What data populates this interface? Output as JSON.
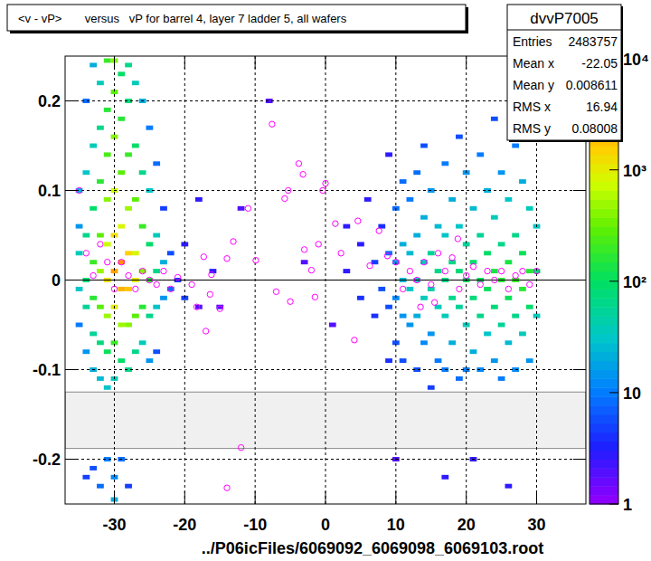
{
  "chart_data": {
    "type": "heatmap",
    "title": "<v - vP>       versus   vP for barrel 4, layer 7 ladder 5, all wafers",
    "x_label": "../P06icFiles/6069092_6069098_6069103.root",
    "xlim": [
      -37,
      37
    ],
    "ylim": [
      -0.25,
      0.25
    ],
    "xticks": [
      -30,
      -20,
      -10,
      0,
      10,
      20,
      30
    ],
    "yticks": [
      -0.2,
      -0.1,
      0,
      0.1,
      0.2
    ],
    "grid": true,
    "hline": 0,
    "shaded_band": [
      -0.188,
      -0.125
    ],
    "cell_size": [
      1,
      0.005
    ],
    "cells": [
      [
        -35,
        0.1,
        20
      ],
      [
        -35,
        0.03,
        40
      ],
      [
        -35,
        -0.01,
        30
      ],
      [
        -35,
        0.06,
        15
      ],
      [
        -35,
        -0.05,
        10
      ],
      [
        -34,
        0.2,
        8
      ],
      [
        -34,
        0.12,
        30
      ],
      [
        -34,
        0.05,
        60
      ],
      [
        -34,
        0.0,
        80
      ],
      [
        -34,
        -0.03,
        50
      ],
      [
        -34,
        -0.08,
        15
      ],
      [
        -34,
        -0.22,
        5
      ],
      [
        -33,
        0.24,
        20
      ],
      [
        -33,
        0.15,
        40
      ],
      [
        -33,
        0.08,
        100
      ],
      [
        -33,
        0.02,
        200
      ],
      [
        -33,
        -0.02,
        150
      ],
      [
        -33,
        -0.06,
        50
      ],
      [
        -33,
        -0.1,
        20
      ],
      [
        -33,
        -0.21,
        6
      ],
      [
        -32,
        0.22,
        40
      ],
      [
        -32,
        0.17,
        60
      ],
      [
        -32,
        0.11,
        150
      ],
      [
        -32,
        0.05,
        300
      ],
      [
        -32,
        0.01,
        500
      ],
      [
        -32,
        -0.03,
        300
      ],
      [
        -32,
        -0.07,
        80
      ],
      [
        -32,
        -0.11,
        25
      ],
      [
        -32,
        -0.23,
        8
      ],
      [
        -31,
        0.245,
        200
      ],
      [
        -31,
        0.19,
        150
      ],
      [
        -31,
        0.14,
        250
      ],
      [
        -31,
        0.09,
        400
      ],
      [
        -31,
        0.04,
        700
      ],
      [
        -31,
        0.0,
        1200
      ],
      [
        -31,
        -0.04,
        500
      ],
      [
        -31,
        -0.08,
        120
      ],
      [
        -31,
        -0.12,
        30
      ],
      [
        -31,
        -0.2,
        10
      ],
      [
        -30,
        0.245,
        400
      ],
      [
        -30,
        0.21,
        300
      ],
      [
        -30,
        0.16,
        400
      ],
      [
        -30,
        0.1,
        700
      ],
      [
        -30,
        0.05,
        1200
      ],
      [
        -30,
        0.01,
        2500
      ],
      [
        -30,
        -0.03,
        1000
      ],
      [
        -30,
        -0.07,
        200
      ],
      [
        -30,
        -0.11,
        40
      ],
      [
        -30,
        -0.22,
        12
      ],
      [
        -30,
        -0.245,
        20
      ],
      [
        -29,
        0.23,
        100
      ],
      [
        -29,
        0.18,
        150
      ],
      [
        -29,
        0.12,
        300
      ],
      [
        -29,
        0.06,
        900
      ],
      [
        -29,
        0.02,
        3000
      ],
      [
        -29,
        -0.01,
        2000
      ],
      [
        -29,
        -0.05,
        500
      ],
      [
        -29,
        -0.09,
        100
      ],
      [
        -29,
        -0.2,
        8
      ],
      [
        -28,
        0.24,
        60
      ],
      [
        -28,
        0.2,
        80
      ],
      [
        -28,
        0.14,
        200
      ],
      [
        -28,
        0.08,
        500
      ],
      [
        -28,
        0.03,
        1500
      ],
      [
        -28,
        -0.01,
        1800
      ],
      [
        -28,
        -0.05,
        400
      ],
      [
        -28,
        -0.1,
        60
      ],
      [
        -28,
        -0.23,
        5
      ],
      [
        -27,
        0.22,
        40
      ],
      [
        -27,
        0.15,
        100
      ],
      [
        -27,
        0.09,
        300
      ],
      [
        -27,
        0.03,
        800
      ],
      [
        -27,
        0.0,
        1000
      ],
      [
        -27,
        -0.04,
        300
      ],
      [
        -27,
        -0.08,
        60
      ],
      [
        -26,
        0.2,
        20
      ],
      [
        -26,
        0.12,
        60
      ],
      [
        -26,
        0.06,
        200
      ],
      [
        -26,
        0.01,
        400
      ],
      [
        -26,
        -0.03,
        150
      ],
      [
        -26,
        -0.07,
        40
      ],
      [
        -25,
        0.17,
        10
      ],
      [
        -25,
        0.1,
        30
      ],
      [
        -25,
        0.04,
        100
      ],
      [
        -25,
        0.0,
        150
      ],
      [
        -25,
        -0.04,
        60
      ],
      [
        -25,
        -0.09,
        15
      ],
      [
        -24,
        0.13,
        8
      ],
      [
        -24,
        0.05,
        40
      ],
      [
        -24,
        0.01,
        60
      ],
      [
        -24,
        -0.03,
        30
      ],
      [
        -24,
        -0.08,
        6
      ],
      [
        -23,
        0.08,
        5
      ],
      [
        -23,
        0.02,
        20
      ],
      [
        -23,
        -0.02,
        15
      ],
      [
        -22,
        0.03,
        6
      ],
      [
        -22,
        -0.01,
        8
      ],
      [
        -21,
        0.0,
        4
      ],
      [
        -20,
        0.04,
        3
      ],
      [
        -20,
        -0.02,
        5
      ],
      [
        -18,
        0.09,
        3
      ],
      [
        -18,
        -0.03,
        2
      ],
      [
        -16,
        0.01,
        3
      ],
      [
        -15,
        -0.03,
        2
      ],
      [
        -12,
        0.08,
        2
      ],
      [
        -8,
        0.2,
        2
      ],
      [
        -3,
        0.02,
        2
      ],
      [
        1,
        -0.05,
        2
      ],
      [
        3,
        0.06,
        3
      ],
      [
        3,
        0.01,
        3
      ],
      [
        5,
        -0.02,
        4
      ],
      [
        5,
        0.04,
        3
      ],
      [
        6,
        0.09,
        3
      ],
      [
        7,
        0.02,
        5
      ],
      [
        7,
        -0.04,
        4
      ],
      [
        8,
        0.06,
        4
      ],
      [
        8,
        -0.01,
        6
      ],
      [
        9,
        0.14,
        3
      ],
      [
        9,
        0.03,
        8
      ],
      [
        9,
        -0.03,
        6
      ],
      [
        9,
        -0.09,
        4
      ],
      [
        10,
        0.08,
        8
      ],
      [
        10,
        0.02,
        15
      ],
      [
        10,
        -0.02,
        12
      ],
      [
        10,
        -0.07,
        6
      ],
      [
        10,
        -0.2,
        2
      ],
      [
        11,
        0.11,
        8
      ],
      [
        11,
        0.04,
        20
      ],
      [
        11,
        0.0,
        25
      ],
      [
        11,
        -0.04,
        15
      ],
      [
        11,
        -0.09,
        6
      ],
      [
        12,
        0.09,
        10
      ],
      [
        12,
        0.03,
        25
      ],
      [
        12,
        -0.01,
        30
      ],
      [
        12,
        -0.05,
        15
      ],
      [
        13,
        0.12,
        8
      ],
      [
        13,
        0.05,
        20
      ],
      [
        13,
        0.0,
        35
      ],
      [
        13,
        -0.04,
        20
      ],
      [
        13,
        -0.1,
        6
      ],
      [
        14,
        0.15,
        6
      ],
      [
        14,
        0.07,
        20
      ],
      [
        14,
        0.02,
        40
      ],
      [
        14,
        -0.02,
        35
      ],
      [
        14,
        -0.07,
        12
      ],
      [
        15,
        0.1,
        15
      ],
      [
        15,
        0.03,
        50
      ],
      [
        15,
        -0.01,
        45
      ],
      [
        15,
        -0.06,
        15
      ],
      [
        15,
        -0.12,
        5
      ],
      [
        16,
        0.06,
        25
      ],
      [
        16,
        0.01,
        60
      ],
      [
        16,
        -0.03,
        40
      ],
      [
        16,
        -0.09,
        10
      ],
      [
        17,
        0.13,
        10
      ],
      [
        17,
        0.05,
        30
      ],
      [
        17,
        0.0,
        70
      ],
      [
        17,
        -0.04,
        40
      ],
      [
        17,
        -0.1,
        10
      ],
      [
        17,
        -0.22,
        3
      ],
      [
        18,
        0.09,
        20
      ],
      [
        18,
        0.02,
        60
      ],
      [
        18,
        -0.02,
        60
      ],
      [
        18,
        -0.07,
        20
      ],
      [
        19,
        0.16,
        6
      ],
      [
        19,
        0.06,
        30
      ],
      [
        19,
        0.01,
        80
      ],
      [
        19,
        -0.03,
        50
      ],
      [
        19,
        -0.11,
        8
      ],
      [
        20,
        0.12,
        15
      ],
      [
        20,
        0.04,
        50
      ],
      [
        20,
        0.0,
        100
      ],
      [
        20,
        -0.05,
        40
      ],
      [
        20,
        -0.1,
        10
      ],
      [
        21,
        0.08,
        25
      ],
      [
        21,
        0.02,
        90
      ],
      [
        21,
        -0.02,
        80
      ],
      [
        21,
        -0.08,
        20
      ],
      [
        21,
        -0.2,
        3
      ],
      [
        22,
        0.14,
        10
      ],
      [
        22,
        0.05,
        50
      ],
      [
        22,
        0.0,
        120
      ],
      [
        22,
        -0.04,
        60
      ],
      [
        22,
        -0.1,
        12
      ],
      [
        23,
        0.1,
        20
      ],
      [
        23,
        0.03,
        90
      ],
      [
        23,
        -0.01,
        110
      ],
      [
        23,
        -0.06,
        30
      ],
      [
        24,
        0.18,
        6
      ],
      [
        24,
        0.07,
        40
      ],
      [
        24,
        0.01,
        140
      ],
      [
        24,
        -0.03,
        80
      ],
      [
        24,
        -0.09,
        15
      ],
      [
        25,
        0.12,
        15
      ],
      [
        25,
        0.04,
        70
      ],
      [
        25,
        0.0,
        160
      ],
      [
        25,
        -0.05,
        50
      ],
      [
        25,
        -0.11,
        10
      ],
      [
        26,
        0.09,
        30
      ],
      [
        26,
        0.02,
        130
      ],
      [
        26,
        -0.02,
        120
      ],
      [
        26,
        -0.07,
        25
      ],
      [
        26,
        -0.23,
        3
      ],
      [
        27,
        0.15,
        10
      ],
      [
        27,
        0.05,
        60
      ],
      [
        27,
        0.0,
        180
      ],
      [
        27,
        -0.04,
        70
      ],
      [
        27,
        -0.1,
        12
      ],
      [
        28,
        0.11,
        20
      ],
      [
        28,
        0.03,
        110
      ],
      [
        28,
        -0.01,
        150
      ],
      [
        28,
        -0.06,
        35
      ],
      [
        29,
        0.08,
        40
      ],
      [
        29,
        0.01,
        160
      ],
      [
        29,
        -0.03,
        100
      ],
      [
        29,
        -0.09,
        15
      ],
      [
        30,
        0.06,
        30
      ],
      [
        30,
        0.01,
        80
      ],
      [
        30,
        -0.04,
        40
      ]
    ],
    "colorbar": {
      "range": [
        1,
        10500
      ],
      "ticks": [
        1,
        10,
        {
          "value": 100,
          "label": "10²"
        },
        {
          "value": 1000,
          "label": "10³"
        },
        {
          "value": 10000,
          "label": "10⁴"
        }
      ]
    },
    "profile": {
      "color": "#ff00ff",
      "marker": "circle",
      "x": [
        -35,
        -34,
        -33,
        -32,
        -31,
        -30,
        -29,
        -28,
        -27,
        -26,
        -25,
        -24,
        -23,
        -22,
        -21,
        -19,
        -18.3,
        -17.3,
        -17,
        -16.4,
        -16.2,
        -15,
        -14,
        -13.1,
        -12,
        -14,
        -11,
        -9.9,
        -7.6,
        -7,
        -5.8,
        -5.3,
        -5,
        -3.8,
        -3.2,
        -3,
        -2,
        -1.5,
        -1,
        -0.4,
        0,
        1.4,
        2.2,
        4.1,
        4.6,
        6.3,
        7.6,
        8.8,
        10,
        11,
        12,
        13,
        13.5,
        14,
        15,
        15.5,
        16,
        17,
        18,
        18.8,
        19,
        20,
        21,
        22,
        23,
        24,
        25,
        26,
        27,
        28,
        29,
        30
      ],
      "y": [
        0.1,
        0.03,
        0.005,
        0.04,
        0.02,
        -0.01,
        0.02,
        0.005,
        -0.01,
        0.01,
        0.0,
        -0.005,
        0.01,
        -0.01,
        0.003,
        -0.005,
        -0.03,
        0.026,
        -0.057,
        -0.016,
        0.006,
        -0.032,
        0.024,
        0.043,
        -0.187,
        -0.232,
        0.08,
        0.022,
        0.174,
        -0.013,
        0.091,
        0.1,
        -0.024,
        0.13,
        0.118,
        0.034,
        0.011,
        -0.019,
        0.04,
        0.1,
        0.108,
        0.063,
        0.03,
        -0.067,
        0.066,
        0.016,
        0.055,
        0.027,
        0.02,
        -0.01,
        0.01,
        0.0,
        -0.03,
        0.02,
        -0.005,
        -0.025,
        0.03,
        0.01,
        0.025,
        0.046,
        -0.01,
        0.005,
        0.015,
        -0.005,
        0.01,
        0.0,
        0.01,
        -0.01,
        0.005,
        0.01,
        -0.005,
        0.01
      ]
    },
    "stats": {
      "title": "dvvP7005",
      "rows": [
        {
          "label": "Entries",
          "value": 2483757
        },
        {
          "label": "Mean x",
          "value": -22.05
        },
        {
          "label": "Mean y",
          "value": 0.008611
        },
        {
          "label": "RMS x",
          "value": 16.94
        },
        {
          "label": "RMS y",
          "value": 0.08008
        }
      ]
    }
  }
}
